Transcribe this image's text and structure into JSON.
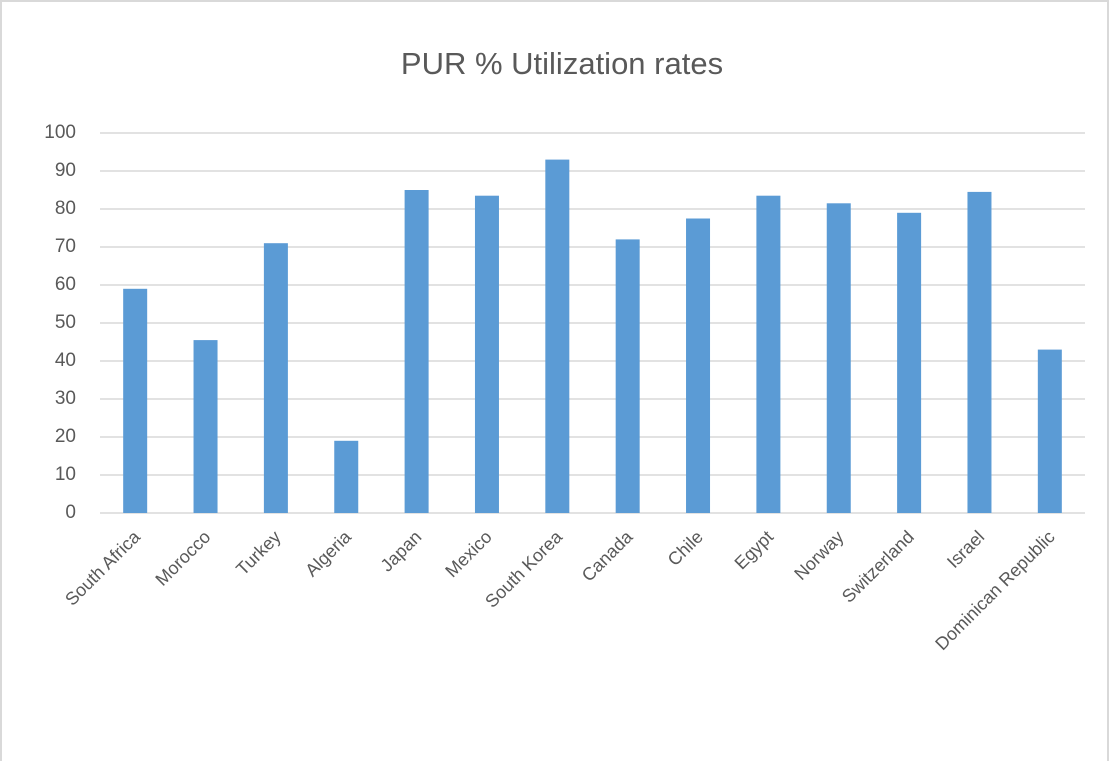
{
  "chart_data": {
    "type": "bar",
    "title": "PUR % Utilization rates",
    "categories": [
      "South Africa",
      "Morocco",
      "Turkey",
      "Algeria",
      "Japan",
      "Mexico",
      "South Korea",
      "Canada",
      "Chile",
      "Egypt",
      "Norway",
      "Switzerland",
      "Israel",
      "Dominican Republic"
    ],
    "values": [
      59,
      45.5,
      71,
      19,
      85,
      83.5,
      93,
      72,
      77.5,
      83.5,
      81.5,
      79,
      84.5,
      43
    ],
    "color": "#5b9bd5",
    "ylim": [
      0,
      100
    ],
    "yticks": [
      0,
      10,
      20,
      30,
      40,
      50,
      60,
      70,
      80,
      90,
      100
    ],
    "grid": true
  }
}
